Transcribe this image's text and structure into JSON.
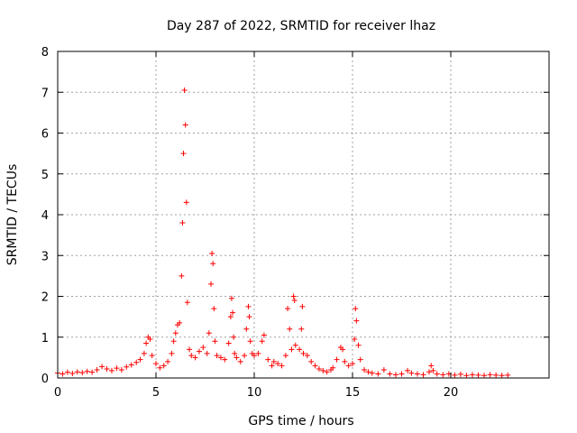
{
  "chart_data": {
    "type": "scatter",
    "title": "Day 287 of 2022, SRMTID for receiver lhaz",
    "xlabel": "GPS time / hours",
    "ylabel": "SRMTID / TECUs",
    "xlim": [
      0,
      25
    ],
    "ylim": [
      0,
      8
    ],
    "x_ticks": [
      0,
      5,
      10,
      15,
      20
    ],
    "y_ticks": [
      0,
      1,
      2,
      3,
      4,
      5,
      6,
      7,
      8
    ],
    "grid": true,
    "marker": "+",
    "series": [
      {
        "name": "lhaz",
        "color": "#ff0000",
        "x": [
          0.0,
          0.25,
          0.5,
          0.75,
          1.0,
          1.25,
          1.5,
          1.75,
          2.0,
          2.25,
          2.5,
          2.75,
          3.0,
          3.25,
          3.5,
          3.75,
          4.0,
          4.2,
          4.4,
          4.5,
          4.6,
          4.7,
          4.8,
          5.0,
          5.2,
          5.4,
          5.6,
          5.8,
          5.9,
          6.0,
          6.1,
          6.2,
          6.3,
          6.35,
          6.4,
          6.45,
          6.5,
          6.55,
          6.6,
          6.7,
          6.8,
          7.0,
          7.2,
          7.4,
          7.6,
          7.7,
          7.8,
          7.85,
          7.9,
          7.95,
          8.0,
          8.1,
          8.3,
          8.5,
          8.7,
          8.8,
          8.85,
          8.9,
          8.95,
          9.0,
          9.1,
          9.3,
          9.5,
          9.6,
          9.7,
          9.75,
          9.8,
          9.9,
          10.0,
          10.2,
          10.4,
          10.5,
          10.7,
          10.9,
          11.0,
          11.2,
          11.4,
          11.6,
          11.7,
          11.8,
          11.9,
          12.0,
          12.05,
          12.1,
          12.3,
          12.4,
          12.45,
          12.5,
          12.7,
          12.9,
          13.1,
          13.3,
          13.5,
          13.7,
          13.9,
          14.0,
          14.2,
          14.4,
          14.5,
          14.6,
          14.8,
          15.0,
          15.1,
          15.15,
          15.2,
          15.3,
          15.4,
          15.6,
          15.8,
          16.0,
          16.3,
          16.6,
          16.9,
          17.2,
          17.5,
          17.8,
          18.0,
          18.3,
          18.6,
          18.9,
          19.0,
          19.1,
          19.3,
          19.6,
          19.9,
          20.2,
          20.5,
          20.8,
          21.1,
          21.4,
          21.7,
          22.0,
          22.3,
          22.6,
          22.9
        ],
        "y": [
          0.12,
          0.1,
          0.14,
          0.11,
          0.15,
          0.13,
          0.16,
          0.14,
          0.2,
          0.28,
          0.22,
          0.18,
          0.24,
          0.2,
          0.27,
          0.32,
          0.38,
          0.45,
          0.6,
          0.85,
          1.0,
          0.95,
          0.55,
          0.35,
          0.25,
          0.3,
          0.4,
          0.6,
          0.9,
          1.1,
          1.3,
          1.35,
          2.5,
          3.8,
          5.5,
          7.05,
          6.2,
          4.3,
          1.85,
          0.7,
          0.55,
          0.5,
          0.65,
          0.75,
          0.6,
          1.1,
          2.3,
          3.05,
          2.8,
          1.7,
          0.9,
          0.55,
          0.5,
          0.45,
          0.85,
          1.5,
          1.95,
          1.6,
          1.0,
          0.6,
          0.5,
          0.4,
          0.55,
          1.2,
          1.75,
          1.5,
          0.9,
          0.6,
          0.55,
          0.6,
          0.9,
          1.05,
          0.45,
          0.3,
          0.4,
          0.35,
          0.3,
          0.55,
          1.7,
          1.2,
          0.7,
          2.0,
          1.9,
          0.8,
          0.7,
          1.2,
          1.75,
          0.6,
          0.55,
          0.4,
          0.3,
          0.22,
          0.18,
          0.15,
          0.2,
          0.25,
          0.45,
          0.75,
          0.7,
          0.4,
          0.3,
          0.35,
          0.95,
          1.7,
          1.4,
          0.8,
          0.45,
          0.2,
          0.15,
          0.12,
          0.1,
          0.2,
          0.1,
          0.08,
          0.1,
          0.18,
          0.12,
          0.1,
          0.08,
          0.15,
          0.3,
          0.18,
          0.1,
          0.08,
          0.1,
          0.07,
          0.09,
          0.06,
          0.08,
          0.07,
          0.06,
          0.08,
          0.07,
          0.06,
          0.07
        ]
      }
    ]
  }
}
